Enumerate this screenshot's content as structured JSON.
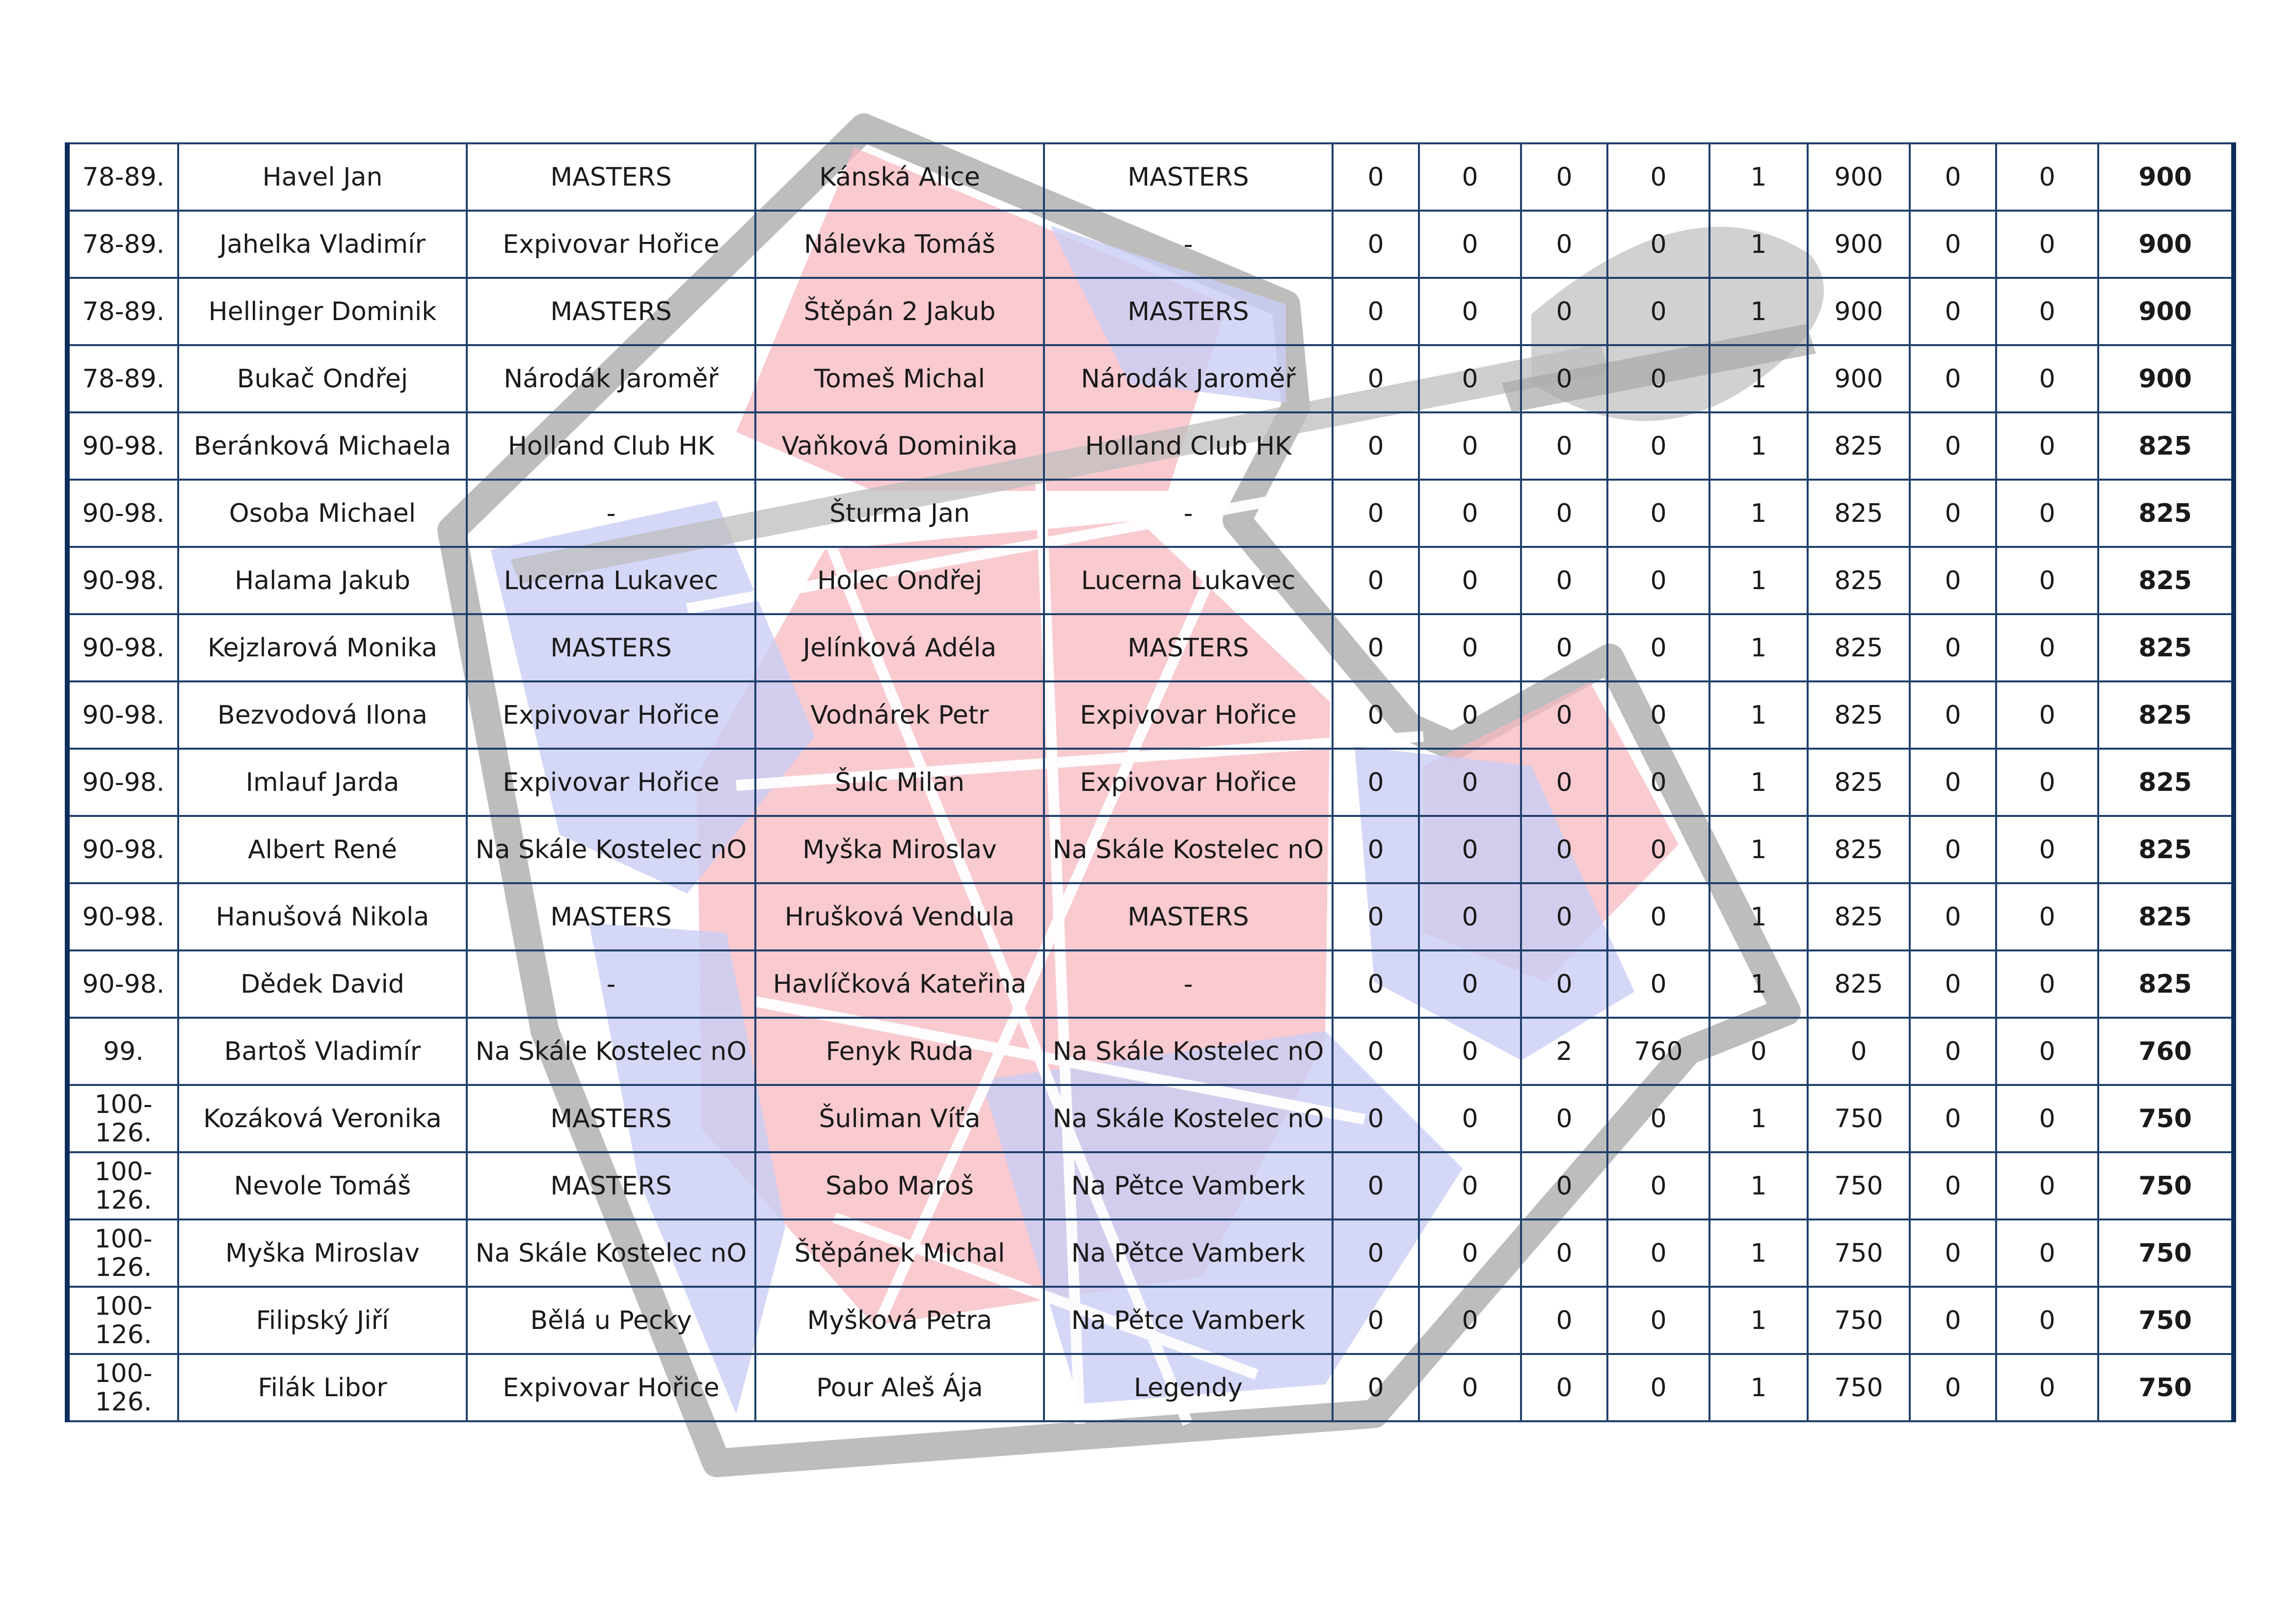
{
  "colors": {
    "border": "#1f3f6a",
    "total_text": "#d90000",
    "rank_text": "#1c3560",
    "watermark_red": "#f7b8c0",
    "watermark_blue": "#c9cdf4",
    "watermark_gray": "#bdbdbd"
  },
  "watermark": {
    "name": "dart-logo"
  },
  "rows": [
    {
      "rank": "78-89.",
      "player": "Havel Jan",
      "club": "MASTERS",
      "partner": "Kánská Alice",
      "partner_club": "MASTERS",
      "c1": "0",
      "c2": "0",
      "c3": "0",
      "c4": "0",
      "c5": "1",
      "c6": "900",
      "c7": "0",
      "c8": "0",
      "total": "900"
    },
    {
      "rank": "78-89.",
      "player": "Jahelka Vladimír",
      "club": "Expivovar Hořice",
      "partner": "Nálevka Tomáš",
      "partner_club": "-",
      "c1": "0",
      "c2": "0",
      "c3": "0",
      "c4": "0",
      "c5": "1",
      "c6": "900",
      "c7": "0",
      "c8": "0",
      "total": "900"
    },
    {
      "rank": "78-89.",
      "player": "Hellinger Dominik",
      "club": "MASTERS",
      "partner": "Štěpán 2 Jakub",
      "partner_club": "MASTERS",
      "c1": "0",
      "c2": "0",
      "c3": "0",
      "c4": "0",
      "c5": "1",
      "c6": "900",
      "c7": "0",
      "c8": "0",
      "total": "900"
    },
    {
      "rank": "78-89.",
      "player": "Bukač Ondřej",
      "club": "Národák Jaroměř",
      "partner": "Tomeš Michal",
      "partner_club": "Národák Jaroměř",
      "c1": "0",
      "c2": "0",
      "c3": "0",
      "c4": "0",
      "c5": "1",
      "c6": "900",
      "c7": "0",
      "c8": "0",
      "total": "900"
    },
    {
      "rank": "90-98.",
      "player": "Beránková Michaela",
      "club": "Holland Club HK",
      "partner": "Vaňková Dominika",
      "partner_club": "Holland Club HK",
      "c1": "0",
      "c2": "0",
      "c3": "0",
      "c4": "0",
      "c5": "1",
      "c6": "825",
      "c7": "0",
      "c8": "0",
      "total": "825"
    },
    {
      "rank": "90-98.",
      "player": "Osoba Michael",
      "club": "-",
      "partner": "Šturma Jan",
      "partner_club": "-",
      "c1": "0",
      "c2": "0",
      "c3": "0",
      "c4": "0",
      "c5": "1",
      "c6": "825",
      "c7": "0",
      "c8": "0",
      "total": "825"
    },
    {
      "rank": "90-98.",
      "player": "Halama Jakub",
      "club": "Lucerna Lukavec",
      "partner": "Holec Ondřej",
      "partner_club": "Lucerna Lukavec",
      "c1": "0",
      "c2": "0",
      "c3": "0",
      "c4": "0",
      "c5": "1",
      "c6": "825",
      "c7": "0",
      "c8": "0",
      "total": "825"
    },
    {
      "rank": "90-98.",
      "player": "Kejzlarová Monika",
      "club": "MASTERS",
      "partner": "Jelínková Adéla",
      "partner_club": "MASTERS",
      "c1": "0",
      "c2": "0",
      "c3": "0",
      "c4": "0",
      "c5": "1",
      "c6": "825",
      "c7": "0",
      "c8": "0",
      "total": "825"
    },
    {
      "rank": "90-98.",
      "player": "Bezvodová Ilona",
      "club": "Expivovar Hořice",
      "partner": "Vodnárek Petr",
      "partner_club": "Expivovar Hořice",
      "c1": "0",
      "c2": "0",
      "c3": "0",
      "c4": "0",
      "c5": "1",
      "c6": "825",
      "c7": "0",
      "c8": "0",
      "total": "825"
    },
    {
      "rank": "90-98.",
      "player": "Imlauf Jarda",
      "club": "Expivovar Hořice",
      "partner": "Šulc Milan",
      "partner_club": "Expivovar Hořice",
      "c1": "0",
      "c2": "0",
      "c3": "0",
      "c4": "0",
      "c5": "1",
      "c6": "825",
      "c7": "0",
      "c8": "0",
      "total": "825"
    },
    {
      "rank": "90-98.",
      "player": "Albert René",
      "club": "Na Skále Kostelec nO",
      "partner": "Myška Miroslav",
      "partner_club": "Na Skále Kostelec nO",
      "c1": "0",
      "c2": "0",
      "c3": "0",
      "c4": "0",
      "c5": "1",
      "c6": "825",
      "c7": "0",
      "c8": "0",
      "total": "825"
    },
    {
      "rank": "90-98.",
      "player": "Hanušová Nikola",
      "club": "MASTERS",
      "partner": "Hrušková Vendula",
      "partner_club": "MASTERS",
      "c1": "0",
      "c2": "0",
      "c3": "0",
      "c4": "0",
      "c5": "1",
      "c6": "825",
      "c7": "0",
      "c8": "0",
      "total": "825"
    },
    {
      "rank": "90-98.",
      "player": "Dědek David",
      "club": "-",
      "partner": "Havlíčková Kateřina",
      "partner_club": "-",
      "c1": "0",
      "c2": "0",
      "c3": "0",
      "c4": "0",
      "c5": "1",
      "c6": "825",
      "c7": "0",
      "c8": "0",
      "total": "825"
    },
    {
      "rank": "99.",
      "player": "Bartoš Vladimír",
      "club": "Na Skále Kostelec nO",
      "partner": "Fenyk Ruda",
      "partner_club": "Na Skále Kostelec nO",
      "c1": "0",
      "c2": "0",
      "c3": "2",
      "c4": "760",
      "c5": "0",
      "c6": "0",
      "c7": "0",
      "c8": "0",
      "total": "760"
    },
    {
      "rank": "100-126.",
      "player": "Kozáková Veronika",
      "club": "MASTERS",
      "partner": "Šuliman Víťa",
      "partner_club": "Na Skále Kostelec nO",
      "c1": "0",
      "c2": "0",
      "c3": "0",
      "c4": "0",
      "c5": "1",
      "c6": "750",
      "c7": "0",
      "c8": "0",
      "total": "750"
    },
    {
      "rank": "100-126.",
      "player": "Nevole Tomáš",
      "club": "MASTERS",
      "partner": "Sabo Maroš",
      "partner_club": "Na Pětce Vamberk",
      "c1": "0",
      "c2": "0",
      "c3": "0",
      "c4": "0",
      "c5": "1",
      "c6": "750",
      "c7": "0",
      "c8": "0",
      "total": "750"
    },
    {
      "rank": "100-126.",
      "player": "Myška Miroslav",
      "club": "Na Skále Kostelec nO",
      "partner": "Štěpánek Michal",
      "partner_club": "Na Pětce Vamberk",
      "c1": "0",
      "c2": "0",
      "c3": "0",
      "c4": "0",
      "c5": "1",
      "c6": "750",
      "c7": "0",
      "c8": "0",
      "total": "750"
    },
    {
      "rank": "100-126.",
      "player": "Filipský Jiří",
      "club": "Bělá u Pecky",
      "partner": "Myšková Petra",
      "partner_club": "Na Pětce Vamberk",
      "c1": "0",
      "c2": "0",
      "c3": "0",
      "c4": "0",
      "c5": "1",
      "c6": "750",
      "c7": "0",
      "c8": "0",
      "total": "750"
    },
    {
      "rank": "100-126.",
      "player": "Filák Libor",
      "club": "Expivovar Hořice",
      "partner": "Pour Aleš Ája",
      "partner_club": "Legendy",
      "c1": "0",
      "c2": "0",
      "c3": "0",
      "c4": "0",
      "c5": "1",
      "c6": "750",
      "c7": "0",
      "c8": "0",
      "total": "750"
    }
  ]
}
